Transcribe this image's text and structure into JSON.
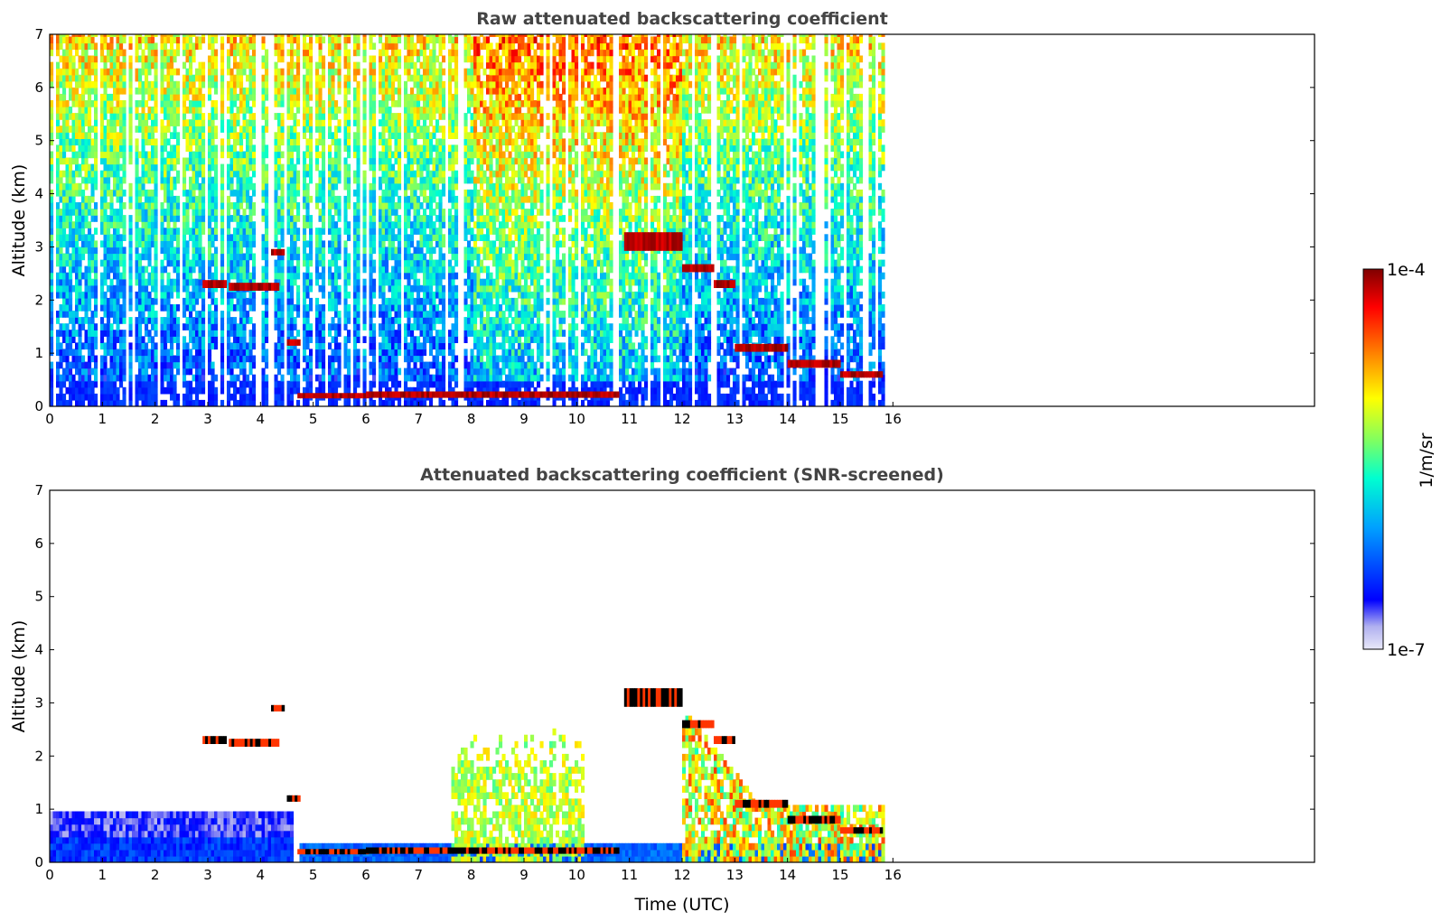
{
  "chart_data": [
    {
      "type": "heatmap",
      "title": "Raw attenuated backscattering coefficient",
      "xlabel": "",
      "ylabel": "Altitude (km)",
      "xlim": [
        0,
        24
      ],
      "ylim": [
        0,
        7
      ],
      "data_extent_x": [
        0,
        15.8
      ],
      "xticks": [
        "0",
        "1",
        "2",
        "3",
        "4",
        "5",
        "6",
        "7",
        "8",
        "9",
        "10",
        "11",
        "12",
        "13",
        "14",
        "15",
        "16"
      ],
      "yticks": [
        "0",
        "1",
        "2",
        "3",
        "4",
        "5",
        "6",
        "7"
      ],
      "layers": [
        {
          "name": "boundary layer",
          "x": [
            0,
            15.8
          ],
          "y_top_km": 0.5,
          "level": "low"
        },
        {
          "name": "cloud",
          "x": [
            2.9,
            3.3
          ],
          "y_km": 2.3,
          "level": "high"
        },
        {
          "name": "cloud",
          "x": [
            3.4,
            4.3
          ],
          "y_km": 2.25,
          "level": "high"
        },
        {
          "name": "cloud",
          "x": [
            4.2,
            4.4
          ],
          "y_km": 2.9,
          "level": "high"
        },
        {
          "name": "cloud",
          "x": [
            4.5,
            4.7
          ],
          "y_km": 1.2,
          "level": "high"
        },
        {
          "name": "cloud",
          "x": [
            4.7,
            10.8
          ],
          "y_km": 0.2,
          "level": "high"
        },
        {
          "name": "cloud",
          "x": [
            10.8,
            12.0
          ],
          "y_km": 3.0,
          "level": "medium"
        },
        {
          "name": "cloud",
          "x": [
            12.0,
            13.0
          ],
          "y_km": 2.5,
          "level": "high"
        },
        {
          "name": "cloud",
          "x": [
            13.0,
            15.8
          ],
          "y_km": 0.9,
          "level": "high"
        }
      ]
    },
    {
      "type": "heatmap",
      "title": "Attenuated backscattering coefficient (SNR-screened)",
      "xlabel": "Time (UTC)",
      "ylabel": "Altitude (km)",
      "xlim": [
        0,
        24
      ],
      "ylim": [
        0,
        7
      ],
      "data_extent_x": [
        0,
        15.8
      ],
      "xticks": [
        "0",
        "1",
        "2",
        "3",
        "4",
        "5",
        "6",
        "7",
        "8",
        "9",
        "10",
        "11",
        "12",
        "13",
        "14",
        "15",
        "16"
      ],
      "yticks": [
        "0",
        "1",
        "2",
        "3",
        "4",
        "5",
        "6",
        "7"
      ]
    }
  ],
  "colorbar": {
    "max_label": "1e-4",
    "min_label": "1e-7",
    "unit_label": "1/m/sr",
    "colormap": "jet",
    "colors": [
      "#e8e8f8",
      "#b0b0f0",
      "#0000ff",
      "#00a0ff",
      "#00ffd0",
      "#80ff60",
      "#ffff00",
      "#ff8000",
      "#ff0000",
      "#800000"
    ]
  }
}
